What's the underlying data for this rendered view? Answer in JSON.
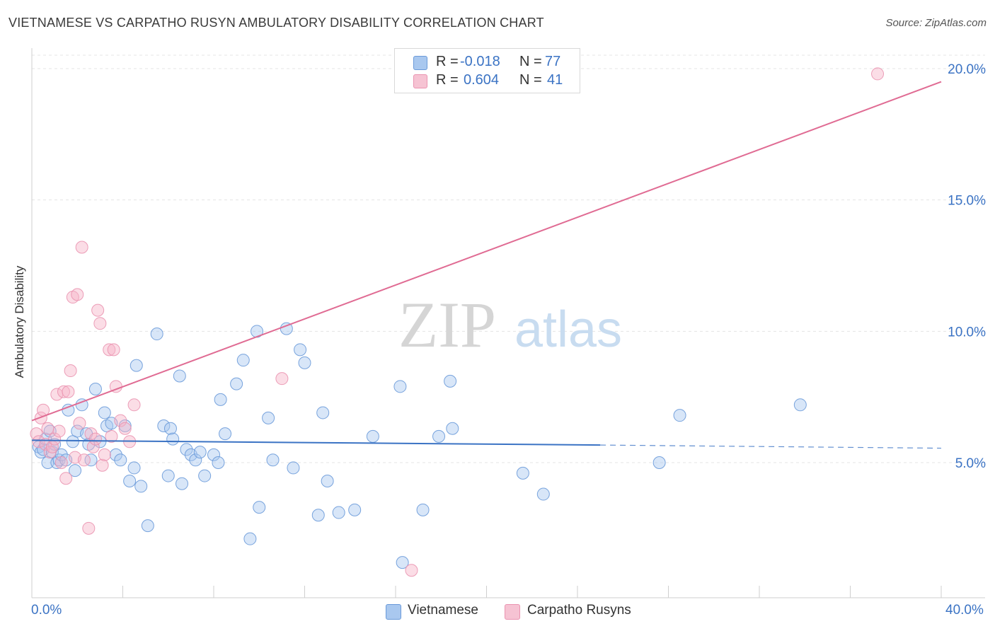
{
  "header": {
    "title": "VIETNAMESE VS CARPATHO RUSYN AMBULATORY DISABILITY CORRELATION CHART",
    "source": "Source: ZipAtlas.com"
  },
  "colors": {
    "blue": "#3b73c4",
    "blue_fill": "#a9c8ef",
    "pink": "#e06b93",
    "pink_fill": "#f6b3c7",
    "grid": "#e4e4e4",
    "watermark_zip": "#d5d5d5",
    "watermark_atlas": "#c8dcf0"
  },
  "watermark": {
    "zip": "ZIP",
    "atlas": "atlas"
  },
  "legend_top": {
    "rows": [
      {
        "r_label": "R =",
        "r_value": "-0.018",
        "n_label": "N =",
        "n_value": "77"
      },
      {
        "r_label": "R =",
        "r_value": "0.604",
        "n_label": "N =",
        "n_value": "41"
      }
    ]
  },
  "legend_bottom": {
    "items": [
      "Vietnamese",
      "Carpatho Rusyns"
    ]
  },
  "axis": {
    "x_min_label": "0.0%",
    "x_max_label": "40.0%",
    "y_tick_labels": [
      "5.0%",
      "10.0%",
      "15.0%",
      "20.0%"
    ],
    "ylabel": "Ambulatory Disability"
  },
  "chart_data": {
    "type": "scatter",
    "xlabel": "",
    "ylabel": "Ambulatory Disability",
    "xlim": [
      0,
      40
    ],
    "ylim": [
      0,
      21
    ],
    "y_ticks": [
      5,
      10,
      15,
      20
    ],
    "x_ticks": [
      0,
      4,
      8,
      12,
      16,
      20,
      24,
      28,
      32,
      36,
      40
    ],
    "grid": true,
    "legend_position": "top-center",
    "series": [
      {
        "name": "Vietnamese",
        "color": "#3b73c4",
        "r": -0.018,
        "n": 77,
        "trend": {
          "x0": 0,
          "y0": 5.85,
          "x1": 25,
          "y1": 5.67,
          "dashed_to_x": 40,
          "dashed_to_y": 5.55
        },
        "points": [
          [
            0.3,
            5.6
          ],
          [
            0.4,
            5.4
          ],
          [
            0.5,
            5.5
          ],
          [
            0.6,
            5.9
          ],
          [
            0.7,
            5.0
          ],
          [
            0.8,
            6.2
          ],
          [
            0.9,
            5.4
          ],
          [
            1.0,
            5.7
          ],
          [
            1.1,
            5.0
          ],
          [
            1.2,
            5.1
          ],
          [
            1.3,
            5.3
          ],
          [
            1.5,
            5.1
          ],
          [
            1.6,
            7.0
          ],
          [
            1.8,
            5.8
          ],
          [
            1.9,
            4.7
          ],
          [
            2.0,
            6.2
          ],
          [
            2.2,
            7.2
          ],
          [
            2.4,
            6.1
          ],
          [
            2.5,
            5.7
          ],
          [
            2.6,
            5.1
          ],
          [
            2.8,
            7.8
          ],
          [
            3.0,
            5.8
          ],
          [
            3.2,
            6.9
          ],
          [
            3.3,
            6.4
          ],
          [
            3.5,
            6.5
          ],
          [
            3.7,
            5.3
          ],
          [
            3.9,
            5.1
          ],
          [
            4.1,
            6.4
          ],
          [
            4.3,
            4.3
          ],
          [
            4.5,
            4.8
          ],
          [
            4.6,
            8.7
          ],
          [
            4.8,
            4.1
          ],
          [
            5.1,
            2.6
          ],
          [
            5.5,
            9.9
          ],
          [
            5.8,
            6.4
          ],
          [
            6.0,
            4.5
          ],
          [
            6.1,
            6.3
          ],
          [
            6.2,
            5.9
          ],
          [
            6.5,
            8.3
          ],
          [
            6.6,
            4.2
          ],
          [
            6.8,
            5.5
          ],
          [
            7.0,
            5.3
          ],
          [
            7.2,
            5.1
          ],
          [
            7.4,
            5.4
          ],
          [
            7.6,
            4.5
          ],
          [
            8.0,
            5.3
          ],
          [
            8.2,
            5.0
          ],
          [
            8.3,
            7.4
          ],
          [
            8.5,
            6.1
          ],
          [
            9.0,
            8.0
          ],
          [
            9.3,
            8.9
          ],
          [
            9.6,
            2.1
          ],
          [
            9.9,
            10.0
          ],
          [
            10.0,
            3.3
          ],
          [
            10.4,
            6.7
          ],
          [
            10.6,
            5.1
          ],
          [
            11.2,
            10.1
          ],
          [
            11.5,
            4.8
          ],
          [
            11.8,
            9.3
          ],
          [
            12.0,
            8.8
          ],
          [
            12.6,
            3.0
          ],
          [
            12.8,
            6.9
          ],
          [
            13.0,
            4.3
          ],
          [
            13.5,
            3.1
          ],
          [
            14.2,
            3.2
          ],
          [
            15.0,
            6.0
          ],
          [
            16.2,
            7.9
          ],
          [
            16.3,
            1.2
          ],
          [
            17.2,
            3.2
          ],
          [
            17.9,
            6.0
          ],
          [
            18.4,
            8.1
          ],
          [
            18.5,
            6.3
          ],
          [
            21.6,
            4.6
          ],
          [
            22.5,
            3.8
          ],
          [
            27.6,
            5.0
          ],
          [
            28.5,
            6.8
          ],
          [
            33.8,
            7.2
          ]
        ]
      },
      {
        "name": "Carpatho Rusyns",
        "color": "#e06b93",
        "r": 0.604,
        "n": 41,
        "trend": {
          "x0": 0,
          "y0": 6.6,
          "x1": 40,
          "y1": 19.5
        },
        "points": [
          [
            0.2,
            6.1
          ],
          [
            0.3,
            5.8
          ],
          [
            0.4,
            6.7
          ],
          [
            0.5,
            7.0
          ],
          [
            0.6,
            5.7
          ],
          [
            0.7,
            6.3
          ],
          [
            0.8,
            5.4
          ],
          [
            0.9,
            5.6
          ],
          [
            1.0,
            5.9
          ],
          [
            1.1,
            7.6
          ],
          [
            1.2,
            6.2
          ],
          [
            1.3,
            5.0
          ],
          [
            1.4,
            7.7
          ],
          [
            1.5,
            4.4
          ],
          [
            1.6,
            7.7
          ],
          [
            1.7,
            8.5
          ],
          [
            1.8,
            11.3
          ],
          [
            1.9,
            5.2
          ],
          [
            2.0,
            11.4
          ],
          [
            2.1,
            6.5
          ],
          [
            2.2,
            13.2
          ],
          [
            2.3,
            5.1
          ],
          [
            2.5,
            2.5
          ],
          [
            2.6,
            6.1
          ],
          [
            2.7,
            5.6
          ],
          [
            2.8,
            5.9
          ],
          [
            2.9,
            10.8
          ],
          [
            3.0,
            10.3
          ],
          [
            3.1,
            4.9
          ],
          [
            3.2,
            5.3
          ],
          [
            3.4,
            9.3
          ],
          [
            3.5,
            6.0
          ],
          [
            3.6,
            9.3
          ],
          [
            3.7,
            7.9
          ],
          [
            3.9,
            6.6
          ],
          [
            4.1,
            6.3
          ],
          [
            4.3,
            5.8
          ],
          [
            4.5,
            7.2
          ],
          [
            11.0,
            8.2
          ],
          [
            16.7,
            0.9
          ],
          [
            37.2,
            19.8
          ]
        ]
      }
    ]
  }
}
